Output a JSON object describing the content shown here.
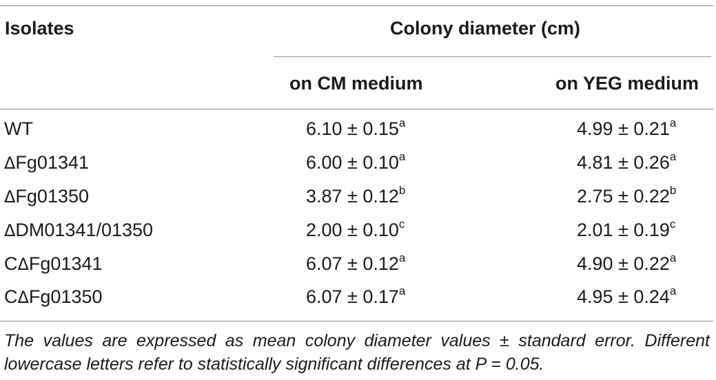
{
  "header": {
    "isolates": "Isolates",
    "colony_diameter": "Colony diameter (cm)",
    "on_cm": "on CM medium",
    "on_yeg": "on YEG medium"
  },
  "rows": [
    {
      "prefix": "",
      "delta": "",
      "name": "WT",
      "cm": "6.10 ± 0.15",
      "cm_sup": "a",
      "yeg": "4.99 ± 0.21",
      "yeg_sup": "a"
    },
    {
      "prefix": "",
      "delta": "Δ",
      "name": "Fg01341",
      "cm": "6.00 ± 0.10",
      "cm_sup": "a",
      "yeg": "4.81 ± 0.26",
      "yeg_sup": "a"
    },
    {
      "prefix": "",
      "delta": "Δ",
      "name": "Fg01350",
      "cm": "3.87 ± 0.12",
      "cm_sup": "b",
      "yeg": "2.75 ± 0.22",
      "yeg_sup": "b"
    },
    {
      "prefix": "",
      "delta": "Δ",
      "name": "DM01341/01350",
      "cm": "2.00 ± 0.10",
      "cm_sup": "c",
      "yeg": "2.01 ± 0.19",
      "yeg_sup": "c"
    },
    {
      "prefix": "C",
      "delta": "Δ",
      "name": "Fg01341",
      "cm": "6.07 ± 0.12",
      "cm_sup": "a",
      "yeg": "4.90 ± 0.22",
      "yeg_sup": "a"
    },
    {
      "prefix": "C",
      "delta": "Δ",
      "name": "Fg01350",
      "cm": "6.07 ± 0.17",
      "cm_sup": "a",
      "yeg": "4.95 ± 0.24",
      "yeg_sup": "a"
    }
  ],
  "footnote": "The values are expressed as mean colony diameter values ± standard error. Different lowercase letters refer to statistically significant differences at P = 0.05."
}
